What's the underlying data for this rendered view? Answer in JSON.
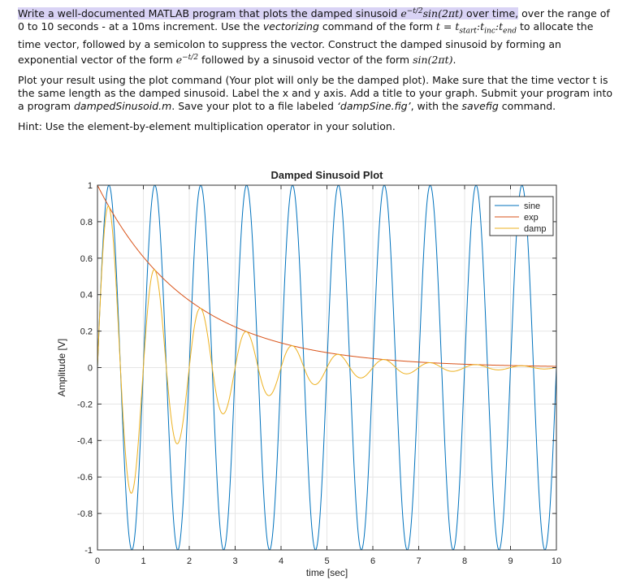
{
  "problem": {
    "p1": {
      "hl_1": "Write a well-documented MATLAB program that plots the damped sinusoid",
      "eq_damped": "e",
      "eq_damped_exp": "−t/2",
      "eq_damped_sin": "sin(2πt)",
      "hl_2": "over time,",
      "t1": "over the range of 0 to 10 seconds - at a 10ms increment. Use the",
      "vectorizing": "vectorizing",
      "t2": "command of the form",
      "eq_t": "t = t",
      "eq_start": "start",
      "eq_colon1": ":t",
      "eq_inc": "inc",
      "eq_colon2": ":t",
      "eq_end": "end",
      "t3": "to allocate the time vector, followed by a semicolon to suppress the vector. Construct the damped sinusoid by forming an exponential vector of the form",
      "eq_exp": "e",
      "eq_exp_sup": "−t/2",
      "t4": "followed by a sinusoid vector of the form",
      "eq_sin": "sin(2πt)",
      "t5": "."
    },
    "p2": {
      "t1": "Plot your result using the plot command (Your plot will only be the damped plot). Make sure that the time vector t is the same length as the damped sinusoid. Label the x and y axis. Add a title to your graph. Submit your program into a program",
      "fname": "dampedSinusoid.m",
      "t2": ". Save your plot to a file labeled",
      "figname": "‘dampSine.fig’",
      "t3": ", with the",
      "savefig": "savefig",
      "t4": "command."
    },
    "hint": "Hint: Use the element-by-element multiplication operator in your solution."
  },
  "chart_data": {
    "type": "line",
    "title": "Damped Sinusoid Plot",
    "xlabel": "time [sec]",
    "ylabel": "Amplitude [V]",
    "xlim": [
      0,
      10
    ],
    "ylim": [
      -1,
      1
    ],
    "xticks": [
      "0",
      "1",
      "2",
      "3",
      "4",
      "5",
      "6",
      "7",
      "8",
      "9",
      "10"
    ],
    "yticks": [
      "-1",
      "-0.8",
      "-0.6",
      "-0.4",
      "-0.2",
      "0",
      "0.2",
      "0.4",
      "0.6",
      "0.8",
      "1"
    ],
    "grid": "on",
    "legend": "top-right",
    "x": {
      "start": 0,
      "step": 0.01,
      "end": 10
    },
    "series": [
      {
        "name": "sine",
        "formula": "sin(2*pi*t)",
        "color": "#0072BD"
      },
      {
        "name": "exp",
        "formula": "exp(-t/2)",
        "color": "#D95319"
      },
      {
        "name": "damp",
        "formula": "exp(-t/2).*sin(2*pi*t)",
        "color": "#EDB120"
      }
    ]
  }
}
